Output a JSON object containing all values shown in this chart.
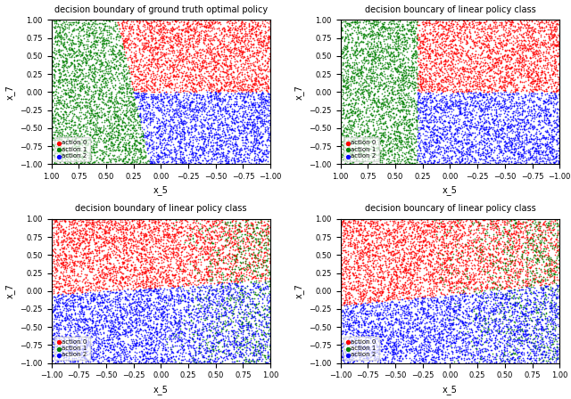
{
  "titles": [
    "decision boundary of ground truth optimal policy",
    "decision bouncary of linear policy class",
    "decision boundary of linear policy class",
    "decision bouncary of linear policy class"
  ],
  "xlabel": "x_5",
  "ylabel": "x_7",
  "colors": [
    "red",
    "green",
    "blue"
  ],
  "action_labels": [
    "action 0",
    "action 1",
    "action 2"
  ],
  "n_points": 8000,
  "ylim": [
    -1.0,
    1.0
  ],
  "marker_size": 1.5,
  "alpha": 0.8
}
